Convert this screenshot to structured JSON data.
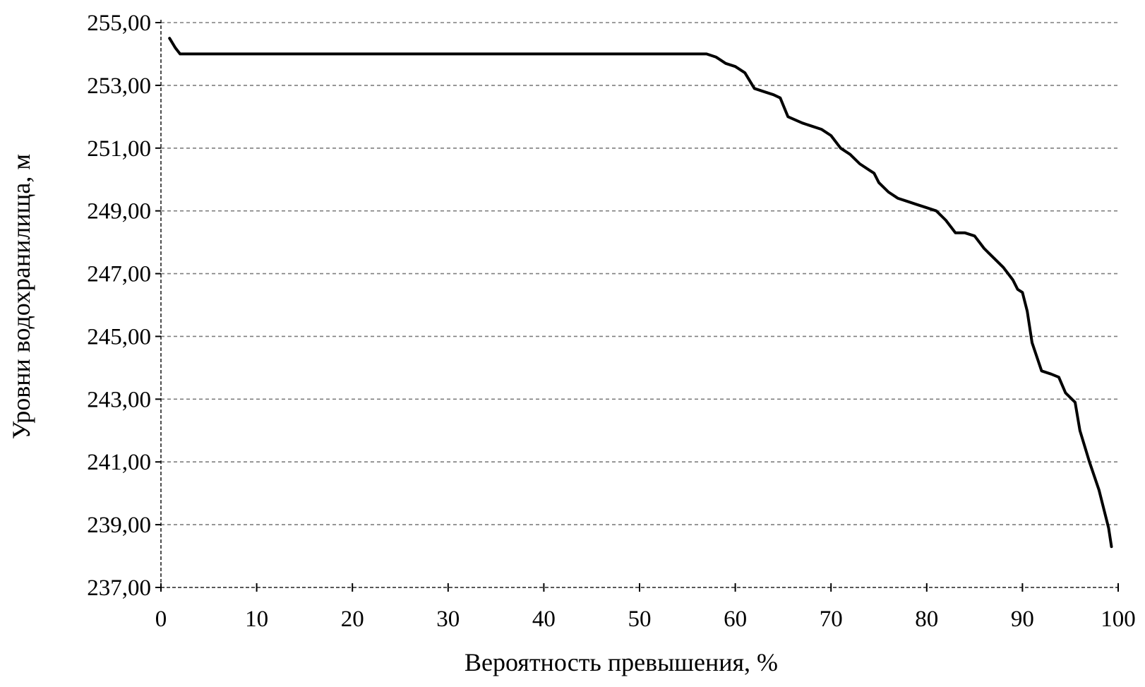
{
  "chart_data": {
    "type": "line",
    "title": "",
    "xlabel": "Вероятность превышения, %",
    "ylabel": "Уровни водохранилища, м",
    "xlim": [
      0,
      100
    ],
    "ylim": [
      237,
      255
    ],
    "x_ticks": [
      "0",
      "10",
      "20",
      "30",
      "40",
      "50",
      "60",
      "70",
      "80",
      "90",
      "100"
    ],
    "y_ticks": [
      "237,00",
      "239,00",
      "241,00",
      "243,00",
      "245,00",
      "247,00",
      "249,00",
      "251,00",
      "253,00",
      "255,00"
    ],
    "grid": true,
    "series": [
      {
        "x": [
          0.9,
          1.5,
          2,
          10,
          20,
          30,
          40,
          50,
          55,
          57,
          58,
          59,
          60,
          61,
          62,
          63,
          64,
          64.7,
          65.5,
          67,
          68,
          69,
          70,
          71,
          72,
          73,
          74,
          74.5,
          75,
          76,
          77,
          78,
          79,
          80,
          81,
          82,
          83,
          84,
          85,
          86,
          87,
          88,
          89,
          89.5,
          90,
          90.5,
          91,
          92,
          93,
          93.8,
          94.5,
          95.5,
          96,
          97,
          98,
          99,
          99.3
        ],
        "y": [
          254.5,
          254.2,
          254.0,
          254.0,
          254.0,
          254.0,
          254.0,
          254.0,
          254.0,
          254.0,
          253.9,
          253.7,
          253.6,
          253.4,
          252.9,
          252.8,
          252.7,
          252.6,
          252.0,
          251.8,
          251.7,
          251.6,
          251.4,
          251.0,
          250.8,
          250.5,
          250.3,
          250.2,
          249.9,
          249.6,
          249.4,
          249.3,
          249.2,
          249.1,
          249.0,
          248.7,
          248.3,
          248.3,
          248.2,
          247.8,
          247.5,
          247.2,
          246.8,
          246.5,
          246.4,
          245.8,
          244.8,
          243.9,
          243.8,
          243.7,
          243.2,
          242.9,
          242.0,
          241.0,
          240.1,
          238.9,
          238.3
        ]
      }
    ]
  }
}
